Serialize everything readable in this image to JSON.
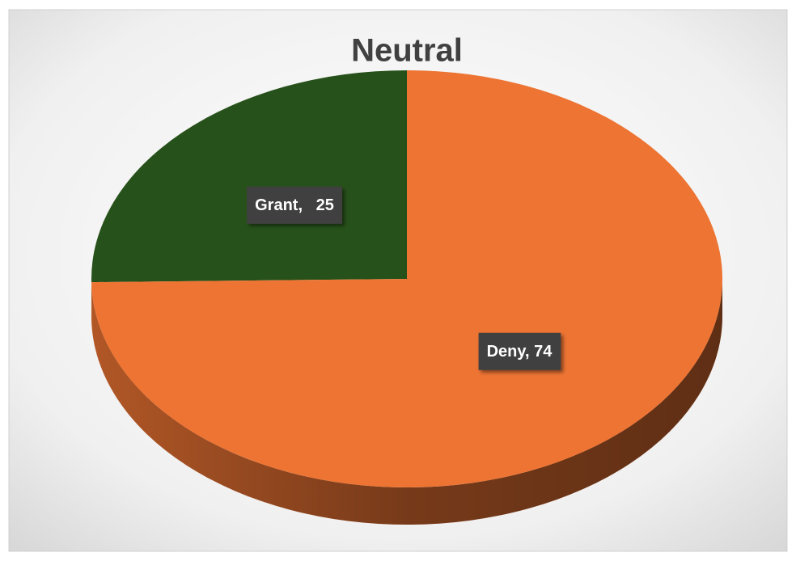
{
  "chart_data": {
    "type": "pie",
    "title": "Neutral",
    "values": [
      25,
      74
    ],
    "value_labels": [
      "Grant,   25",
      "Deny, 74"
    ],
    "colors": [
      "#27511a",
      "#ed7433"
    ],
    "start_angle": 0,
    "direction": "counterclockwise-first"
  }
}
